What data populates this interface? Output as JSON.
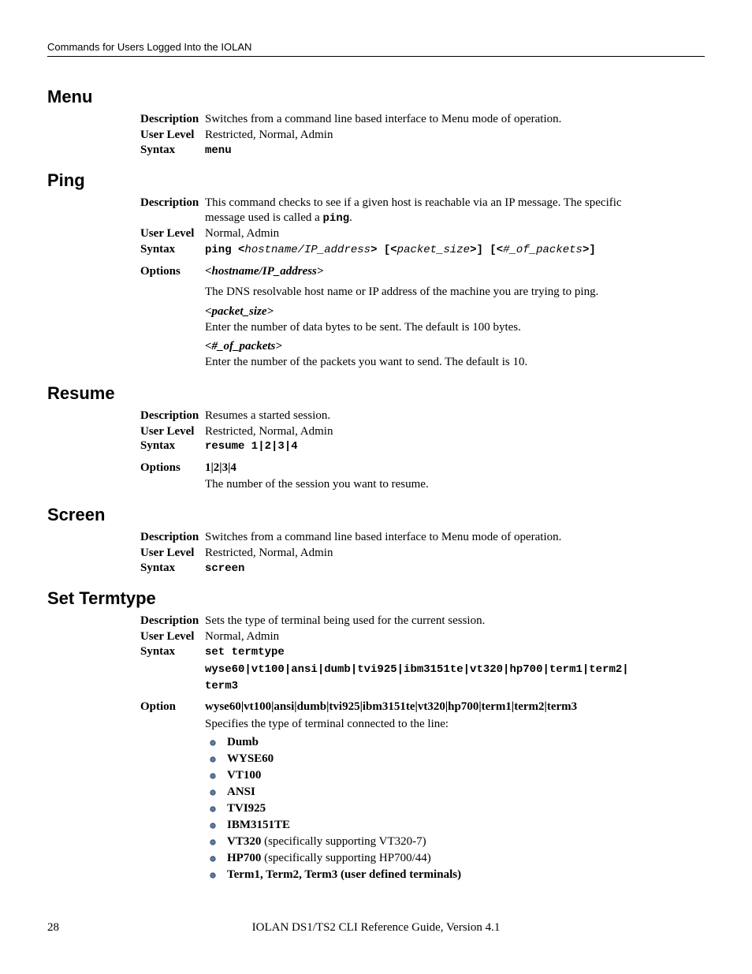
{
  "header": "Commands for Users Logged Into the IOLAN",
  "footer": {
    "page": "28",
    "text": "IOLAN DS1/TS2 CLI Reference Guide, Version 4.1"
  },
  "bullet_colors": {
    "fill": "#5b7da3",
    "stroke": "#2b3f55"
  },
  "sections": {
    "menu": {
      "title": "Menu",
      "desc_label": "Description",
      "desc": "Switches from a command line based interface to Menu mode of operation.",
      "ul_label": "User Level",
      "ul": "Restricted, Normal, Admin",
      "sy_label": "Syntax",
      "sy": "menu"
    },
    "ping": {
      "title": "Ping",
      "desc_label": "Description",
      "desc_l1": "This command checks to see if a given host is reachable via an IP message. The specific",
      "desc_l2a": "message used is called a ",
      "desc_l2b": "ping",
      "desc_l2c": ".",
      "ul_label": "User Level",
      "ul": "Normal, Admin",
      "sy_label": "Syntax",
      "sy_p1": "ping <",
      "sy_p2": "hostname/IP_address",
      "sy_p3": "> [<",
      "sy_p4": "packet_size",
      "sy_p5": ">] [<",
      "sy_p6": "#_of_packets",
      "sy_p7": ">]",
      "opt_label": "Options",
      "opt1_t": "<hostname/IP_address>",
      "opt1_d": "The DNS resolvable host name or IP address of the machine you are trying to ping.",
      "opt2_t": "<packet_size>",
      "opt2_d": "Enter the number of data bytes to be sent. The default is 100 bytes.",
      "opt3_t": "<#_of_packets>",
      "opt3_d": "Enter the number of the packets you want to send. The default is 10."
    },
    "resume": {
      "title": "Resume",
      "desc_label": "Description",
      "desc": "Resumes a started session.",
      "ul_label": "User Level",
      "ul": "Restricted, Normal, Admin",
      "sy_label": "Syntax",
      "sy": "resume 1|2|3|4",
      "opt_label": "Options",
      "opt_t": "1|2|3|4",
      "opt_d": "The number of the session you want to resume."
    },
    "screen": {
      "title": "Screen",
      "desc_label": "Description",
      "desc": "Switches from a command line based interface to Menu mode of operation.",
      "ul_label": "User Level",
      "ul": "Restricted, Normal, Admin",
      "sy_label": "Syntax",
      "sy": "screen"
    },
    "termtype": {
      "title": "Set Termtype",
      "desc_label": "Description",
      "desc": "Sets the type of terminal being used for the current session.",
      "ul_label": "User Level",
      "ul": "Normal, Admin",
      "sy_label": "Syntax",
      "sy1": "set termtype",
      "sy2": "wyse60|vt100|ansi|dumb|tvi925|ibm3151te|vt320|hp700|term1|term2|",
      "sy3": "term3",
      "opt_label": "Option",
      "opt_t": "wyse60|vt100|ansi|dumb|tvi925|ibm3151te|vt320|hp700|term1|term2|term3",
      "list_intro": "Specifies the type of terminal connected to the line:",
      "items": [
        {
          "b": "Dumb",
          "r": ""
        },
        {
          "b": "WYSE60",
          "r": ""
        },
        {
          "b": "VT100",
          "r": ""
        },
        {
          "b": "ANSI",
          "r": ""
        },
        {
          "b": "TVI925",
          "r": ""
        },
        {
          "b": "IBM3151TE",
          "r": ""
        },
        {
          "b": "VT320",
          "r": " (specifically supporting VT320-7)"
        },
        {
          "b": "HP700",
          "r": " (specifically supporting HP700/44)"
        },
        {
          "b": "Term1, Term2, Term3 (user defined terminals)",
          "r": ""
        }
      ]
    }
  }
}
